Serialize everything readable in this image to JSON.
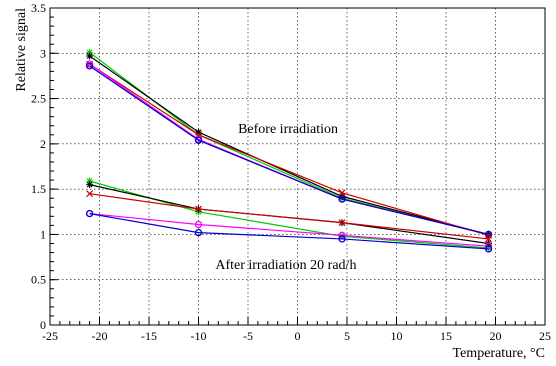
{
  "chart_data": {
    "type": "line",
    "xlabel": "Temperature, °C",
    "ylabel": "Relative signal",
    "xlim": [
      -25,
      25
    ],
    "ylim": [
      0,
      3.5
    ],
    "x_ticks": [
      -25,
      -20,
      -15,
      -10,
      -5,
      0,
      5,
      10,
      15,
      20,
      25
    ],
    "y_ticks": [
      0,
      0.5,
      1,
      1.5,
      2,
      2.5,
      3,
      3.5
    ],
    "x_tick_labels": [
      "-25",
      "-20",
      "-15",
      "-10",
      "-5",
      "0",
      "5",
      "10",
      "15",
      "20",
      "25"
    ],
    "y_tick_labels": [
      "0",
      "0.5",
      "1",
      "1.5",
      "2",
      "2.5",
      "3",
      "3.5"
    ],
    "grid": true,
    "annotations": [
      {
        "text": "Before irradiation",
        "x": -6,
        "y": 2.12
      },
      {
        "text": "After irradiation 20 rad/h",
        "x": -8.3,
        "y": 0.62
      }
    ],
    "series": [
      {
        "color": "#00cc00",
        "marker": "star",
        "x": [
          -21,
          -10,
          4.5,
          19.3
        ],
        "y": [
          3.01,
          2.1,
          1.4,
          1.0
        ]
      },
      {
        "color": "#000000",
        "marker": "star",
        "x": [
          -21,
          -10,
          4.5,
          19.3
        ],
        "y": [
          2.97,
          2.13,
          1.42,
          1.0
        ]
      },
      {
        "color": "#cc0000",
        "marker": "cross",
        "x": [
          -21,
          -10,
          4.5,
          19.3
        ],
        "y": [
          2.88,
          2.1,
          1.46,
          0.99
        ]
      },
      {
        "color": "#ff00ff",
        "marker": "circle",
        "x": [
          -21,
          -10,
          4.5,
          19.3
        ],
        "y": [
          2.88,
          2.05,
          1.39,
          1.0
        ]
      },
      {
        "color": "#0000cc",
        "marker": "circle",
        "x": [
          -21,
          -10,
          4.5,
          19.3
        ],
        "y": [
          2.86,
          2.04,
          1.39,
          1.0
        ]
      },
      {
        "color": "#00cc00",
        "marker": "star",
        "x": [
          -21,
          -10,
          4.5,
          19.3
        ],
        "y": [
          1.59,
          1.25,
          0.98,
          0.85
        ]
      },
      {
        "color": "#000000",
        "marker": "star",
        "x": [
          -21,
          -10,
          4.5,
          19.3
        ],
        "y": [
          1.55,
          1.28,
          1.13,
          0.9
        ]
      },
      {
        "color": "#cc0000",
        "marker": "cross",
        "x": [
          -21,
          -10,
          4.5,
          19.3
        ],
        "y": [
          1.45,
          1.28,
          1.13,
          0.95
        ]
      },
      {
        "color": "#ff00ff",
        "marker": "circle",
        "x": [
          -21,
          -10,
          4.5,
          19.3
        ],
        "y": [
          1.23,
          1.11,
          0.99,
          0.87
        ]
      },
      {
        "color": "#0000cc",
        "marker": "circle",
        "x": [
          -21,
          -10,
          4.5,
          19.3
        ],
        "y": [
          1.23,
          1.02,
          0.95,
          0.84
        ]
      }
    ]
  }
}
